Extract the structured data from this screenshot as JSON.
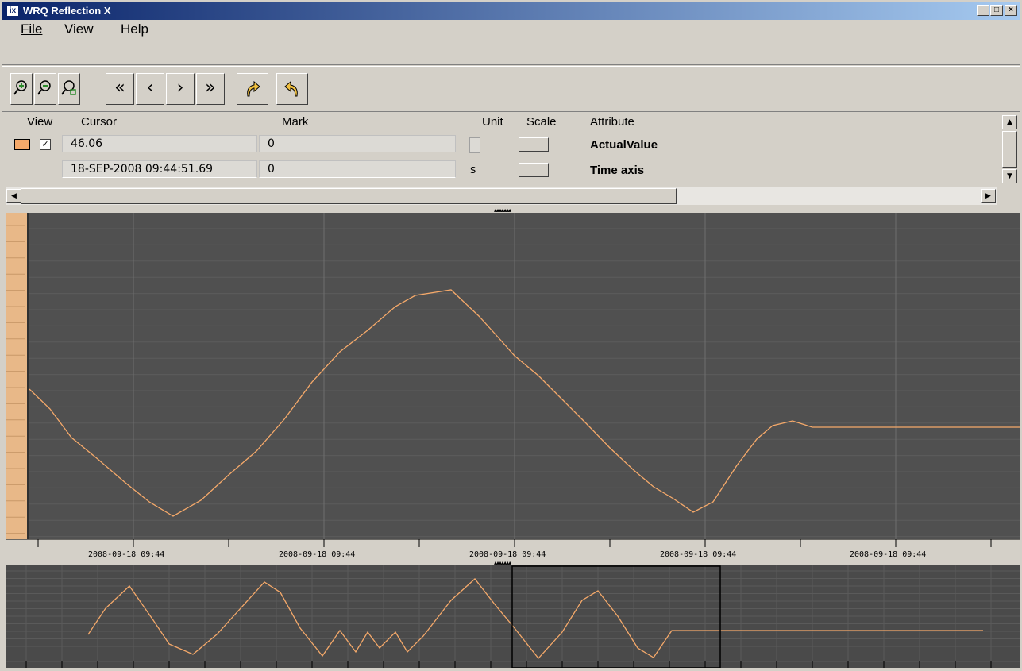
{
  "window": {
    "title": "WRQ Reflection X",
    "app_icon_text": "ix"
  },
  "menubar": {
    "items": [
      "File",
      "View",
      "Help"
    ]
  },
  "toolbar": {
    "buttons": [
      {
        "name": "zoom-in"
      },
      {
        "name": "zoom-out"
      },
      {
        "name": "zoom-fit"
      },
      {
        "name": "first"
      },
      {
        "name": "previous"
      },
      {
        "name": "next"
      },
      {
        "name": "last"
      },
      {
        "name": "redo"
      },
      {
        "name": "undo"
      }
    ]
  },
  "signals_table": {
    "headers": {
      "view": "View",
      "cursor": "Cursor",
      "mark": "Mark",
      "unit": "Unit",
      "scale": "Scale",
      "attribute": "Attribute"
    },
    "rows": [
      {
        "color": "#f5a96a",
        "checked": true,
        "cursor": "46.06",
        "mark": "0",
        "unit": "",
        "attribute": "ActualValue"
      },
      {
        "color": "",
        "checked": false,
        "cursor": "18-SEP-2008 09:44:51.69",
        "mark": "0",
        "unit": "s",
        "attribute": "Time axis"
      }
    ]
  },
  "time_axis": {
    "labels": [
      "2008-09-18 09:44",
      "2008-09-18 09:44",
      "2008-09-18 09:44",
      "2008-09-18 09:44",
      "2008-09-18 09:44"
    ]
  },
  "colors": {
    "plot_bg": "#505050",
    "trace": "#f5a96a",
    "grid_major": "#6e6e6e",
    "grid_minor": "#5c5c5c",
    "overview_bg": "#4a4a4a"
  }
}
